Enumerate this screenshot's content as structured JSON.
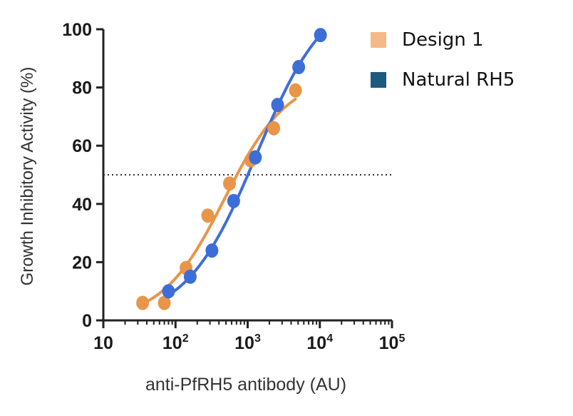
{
  "chart_data": {
    "type": "scatter",
    "title": "",
    "xlabel": "anti-PfRH5 antibody (AU)",
    "ylabel": "Growth Inhibitory Activity (%)",
    "xscale": "log",
    "xlim": [
      10,
      100000
    ],
    "ylim": [
      0,
      100
    ],
    "x_ticks": [
      {
        "value": 10,
        "base": "10",
        "exp": ""
      },
      {
        "value": 100,
        "base": "10",
        "exp": "2"
      },
      {
        "value": 1000,
        "base": "10",
        "exp": "3"
      },
      {
        "value": 10000,
        "base": "10",
        "exp": "4"
      },
      {
        "value": 100000,
        "base": "10",
        "exp": "5"
      }
    ],
    "y_ticks": [
      "0",
      "20",
      "40",
      "60",
      "80",
      "100"
    ],
    "reference_line": {
      "y": 50,
      "style": "dotted"
    },
    "grid": false,
    "legend_position": "top-right",
    "series": [
      {
        "name": "Design 1",
        "legend_color": "#f5b887",
        "color": "#e8954a",
        "points": [
          {
            "x": 35,
            "y": 6
          },
          {
            "x": 70,
            "y": 6
          },
          {
            "x": 140,
            "y": 18
          },
          {
            "x": 280,
            "y": 36
          },
          {
            "x": 560,
            "y": 47
          },
          {
            "x": 1100,
            "y": 55
          },
          {
            "x": 2300,
            "y": 66
          },
          {
            "x": 4600,
            "y": 79
          }
        ]
      },
      {
        "name": "Natural RH5",
        "legend_color": "#1c5a7e",
        "color": "#3d6ed8",
        "points": [
          {
            "x": 80,
            "y": 10
          },
          {
            "x": 160,
            "y": 15
          },
          {
            "x": 320,
            "y": 24
          },
          {
            "x": 640,
            "y": 41
          },
          {
            "x": 1280,
            "y": 56
          },
          {
            "x": 2600,
            "y": 74
          },
          {
            "x": 5100,
            "y": 87
          },
          {
            "x": 10200,
            "y": 98
          }
        ]
      }
    ]
  }
}
